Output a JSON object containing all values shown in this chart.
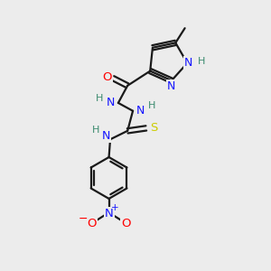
{
  "bg_color": "#ececec",
  "bond_color": "#1a1a1a",
  "colors": {
    "N": "#1414ff",
    "O": "#ff0000",
    "S": "#cccc00",
    "H": "#3a8a6e",
    "C": "#1a1a1a"
  },
  "figsize": [
    3.0,
    3.0
  ],
  "dpi": 100,
  "xlim": [
    0,
    10
  ],
  "ylim": [
    0,
    10
  ]
}
